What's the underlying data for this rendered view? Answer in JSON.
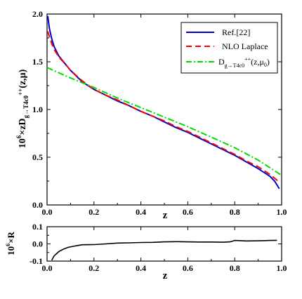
{
  "chart_data": [
    {
      "type": "line",
      "xlabel": "z",
      "ylabel_base": "10",
      "ylabel_exp": "6",
      "ylabel_mid": "×zD",
      "ylabel_sub": "g→T4c0",
      "ylabel_sup": "++",
      "ylabel_tail": "(z,μ)",
      "xlim": [
        0.0,
        1.0
      ],
      "ylim": [
        0.0,
        2.0
      ],
      "xticks": [
        "0.0",
        "0.2",
        "0.4",
        "0.6",
        "0.8",
        "1.0"
      ],
      "yticks": [
        "0.0",
        "0.5",
        "1.0",
        "1.5",
        "2.0"
      ],
      "legend_position": "top-right",
      "series": [
        {
          "name": "Ref.[22]",
          "color": "#0000cc",
          "style": "solid",
          "x": [
            0.003,
            0.01,
            0.02,
            0.03,
            0.05,
            0.08,
            0.1,
            0.15,
            0.2,
            0.25,
            0.3,
            0.35,
            0.4,
            0.45,
            0.5,
            0.55,
            0.6,
            0.65,
            0.7,
            0.75,
            0.8,
            0.85,
            0.9,
            0.95,
            0.97,
            0.99
          ],
          "y": [
            1.98,
            1.85,
            1.74,
            1.66,
            1.56,
            1.47,
            1.41,
            1.29,
            1.21,
            1.15,
            1.09,
            1.04,
            0.98,
            0.93,
            0.87,
            0.81,
            0.76,
            0.7,
            0.64,
            0.58,
            0.52,
            0.45,
            0.38,
            0.3,
            0.25,
            0.17
          ]
        },
        {
          "name": "NLO Laplace",
          "color": "#ff0000",
          "style": "dashed",
          "x": [
            0.003,
            0.01,
            0.02,
            0.03,
            0.05,
            0.08,
            0.1,
            0.15,
            0.2,
            0.25,
            0.3,
            0.35,
            0.4,
            0.45,
            0.5,
            0.55,
            0.6,
            0.65,
            0.7,
            0.75,
            0.8,
            0.85,
            0.9,
            0.95,
            0.97,
            0.99
          ],
          "y": [
            1.82,
            1.76,
            1.69,
            1.63,
            1.55,
            1.47,
            1.41,
            1.3,
            1.21,
            1.15,
            1.1,
            1.04,
            0.98,
            0.93,
            0.88,
            0.82,
            0.77,
            0.71,
            0.65,
            0.59,
            0.53,
            0.46,
            0.4,
            0.32,
            0.28,
            0.24
          ]
        },
        {
          "name_main": "D",
          "name_sub": "g→T4c0",
          "name_sup": "++",
          "name_tail": "(z,μ",
          "name_sub2": "0",
          "name_end": ")",
          "color": "#00dd00",
          "style": "dashdot",
          "x": [
            0.0,
            0.1,
            0.2,
            0.3,
            0.4,
            0.5,
            0.6,
            0.7,
            0.8,
            0.9,
            1.0
          ],
          "y": [
            1.44,
            1.33,
            1.23,
            1.12,
            1.02,
            0.92,
            0.82,
            0.71,
            0.6,
            0.47,
            0.31
          ]
        }
      ]
    },
    {
      "type": "line",
      "xlabel": "z",
      "ylabel_base": "10",
      "ylabel_exp": "6",
      "ylabel_mid": "×R",
      "xlim": [
        0.0,
        1.0
      ],
      "ylim": [
        -0.1,
        0.1
      ],
      "xticks": [
        "0.0",
        "0.2",
        "0.4",
        "0.6",
        "0.8",
        "1.0"
      ],
      "yticks": [
        "-0.1",
        "0.0",
        "0.1"
      ],
      "series": [
        {
          "color": "#000000",
          "style": "solid",
          "x": [
            0.02,
            0.03,
            0.05,
            0.07,
            0.09,
            0.12,
            0.15,
            0.2,
            0.25,
            0.3,
            0.35,
            0.4,
            0.45,
            0.5,
            0.55,
            0.6,
            0.65,
            0.7,
            0.75,
            0.78,
            0.8,
            0.85,
            0.9,
            0.95,
            0.98
          ],
          "y": [
            -0.095,
            -0.07,
            -0.045,
            -0.03,
            -0.02,
            -0.012,
            -0.005,
            -0.004,
            0.0,
            0.005,
            0.006,
            0.008,
            0.009,
            0.012,
            0.013,
            0.012,
            0.011,
            0.011,
            0.01,
            0.012,
            0.02,
            0.017,
            0.018,
            0.02,
            0.021
          ]
        }
      ]
    }
  ]
}
